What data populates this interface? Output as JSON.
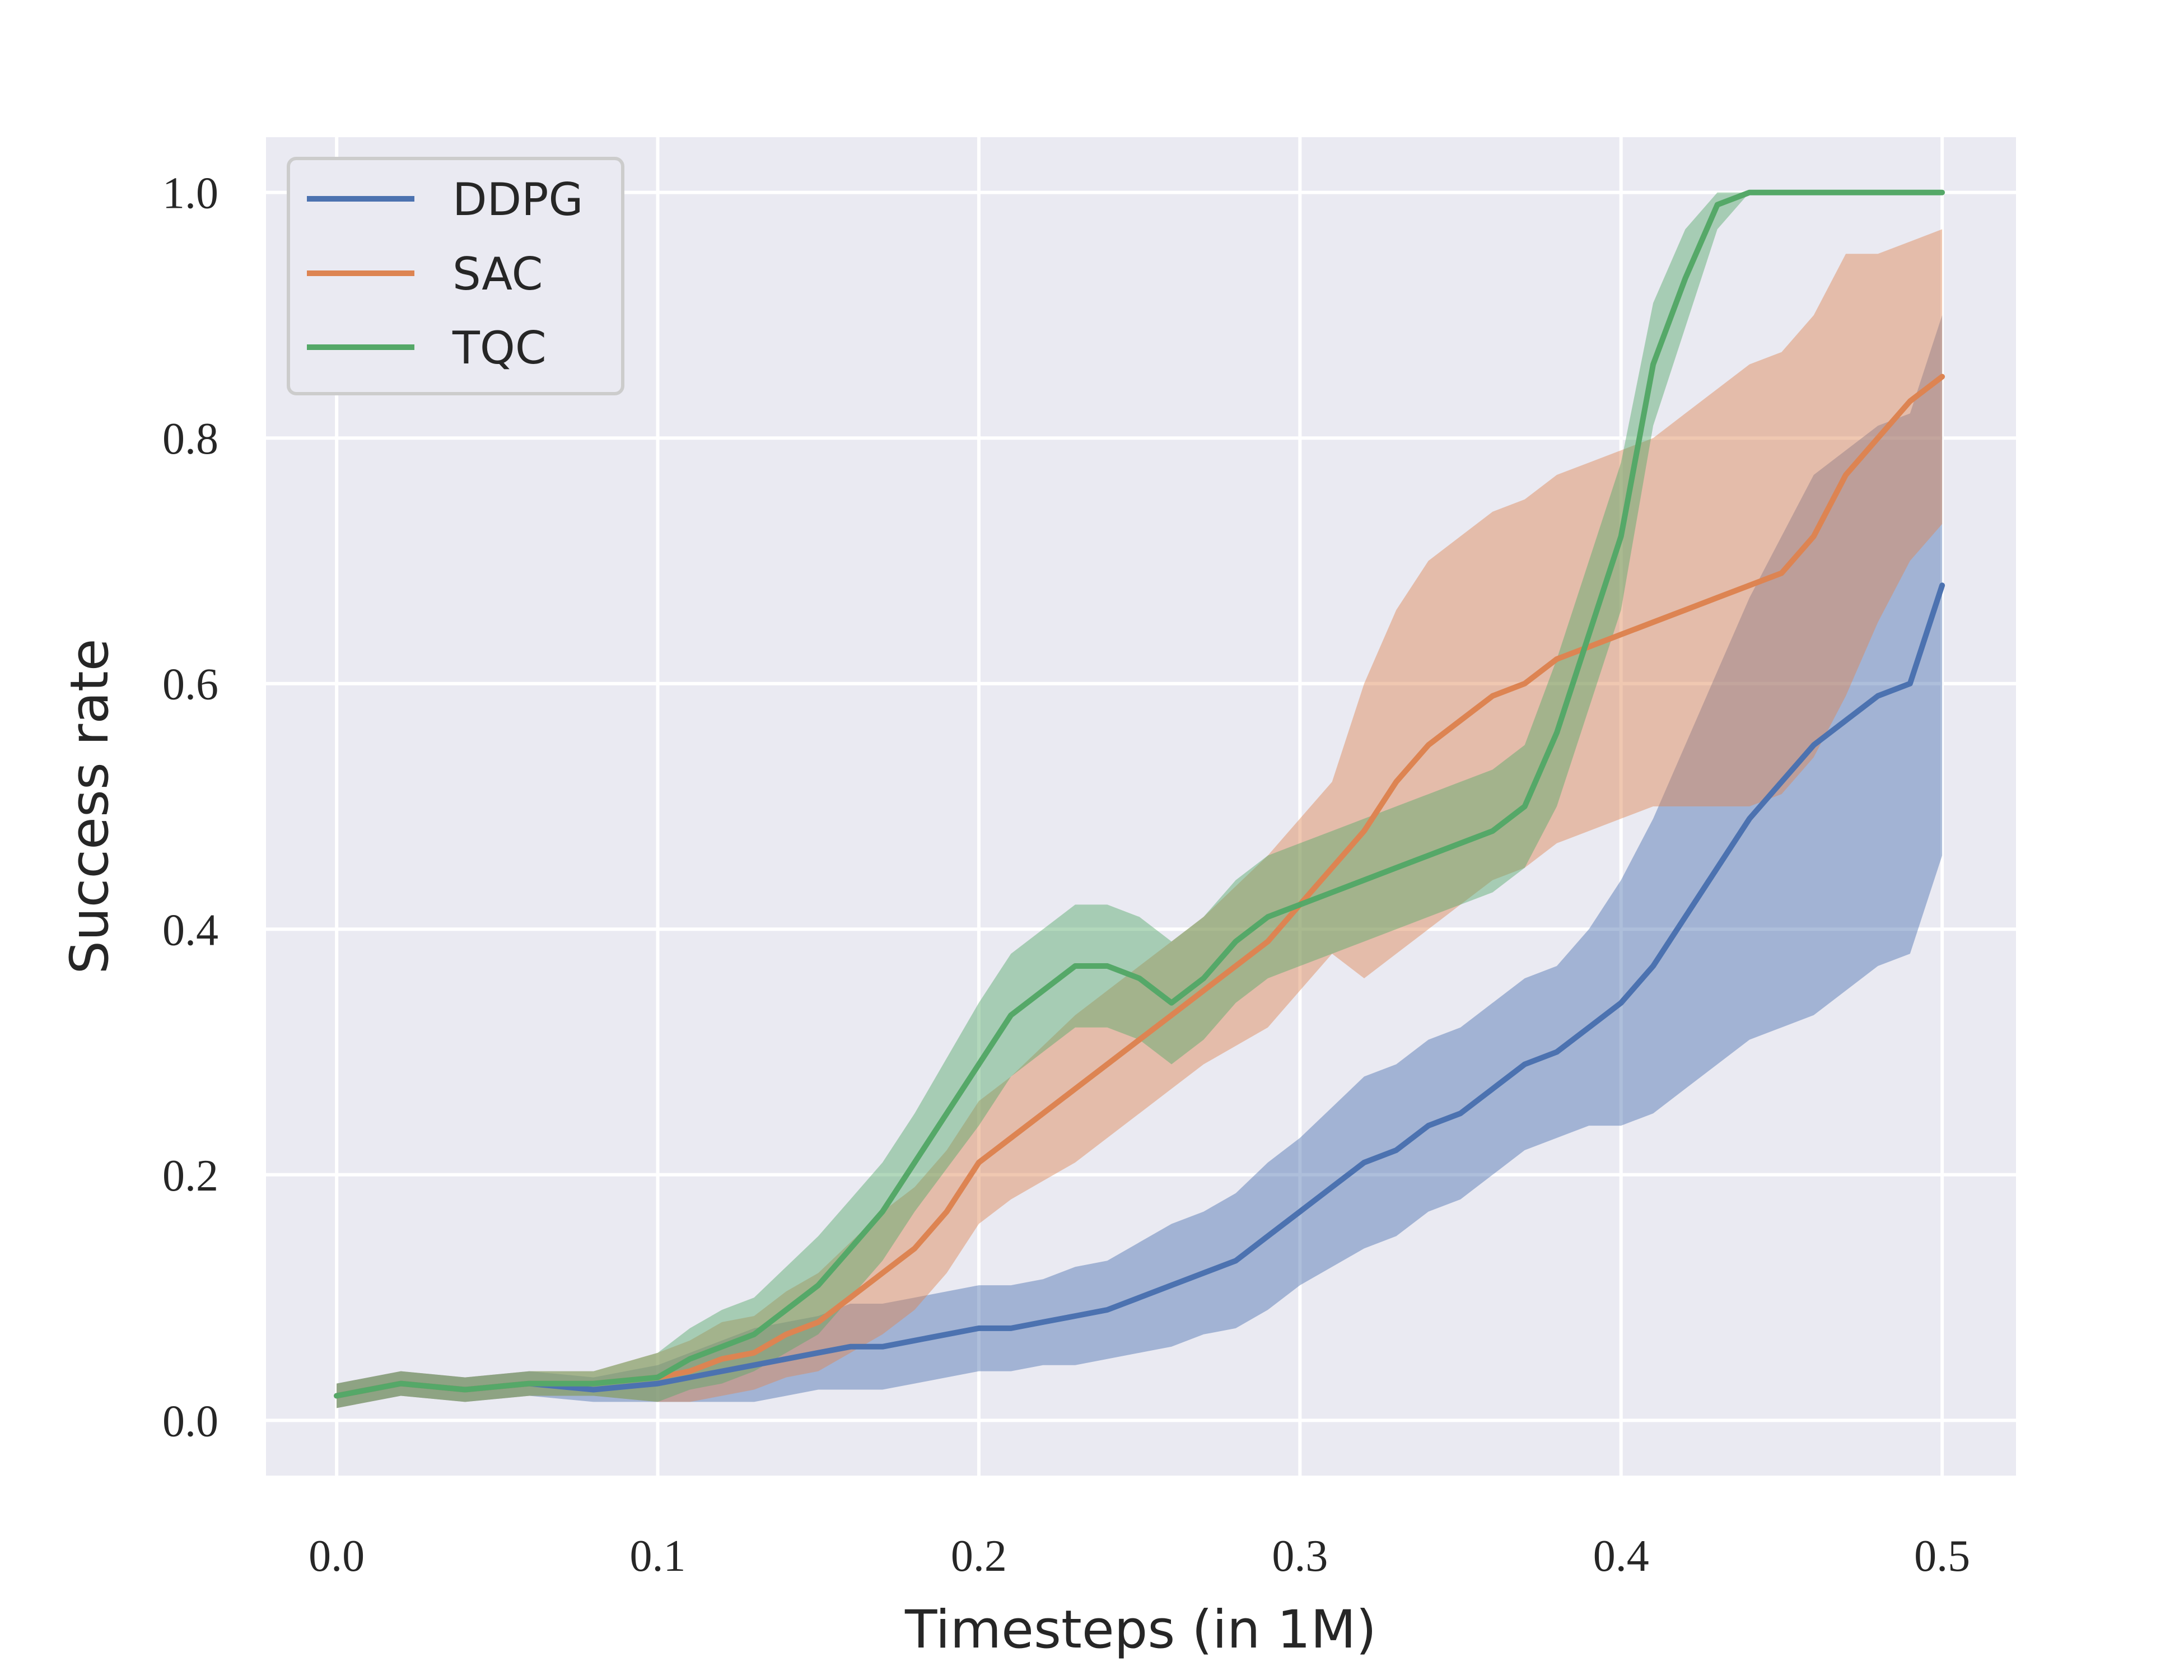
{
  "chart_data": {
    "type": "line",
    "title": "",
    "xlabel": "Timesteps (in 1M)",
    "ylabel": "Success rate",
    "xlim": [
      -0.022,
      0.523
    ],
    "ylim": [
      -0.045,
      1.045
    ],
    "x_ticks": [
      0.0,
      0.1,
      0.2,
      0.3,
      0.4,
      0.5
    ],
    "x_tick_labels": [
      "0.0",
      "0.1",
      "0.2",
      "0.3",
      "0.4",
      "0.5"
    ],
    "y_ticks": [
      0.0,
      0.2,
      0.4,
      0.6,
      0.8,
      1.0
    ],
    "y_tick_labels": [
      "0.0",
      "0.2",
      "0.4",
      "0.6",
      "0.8",
      "1.0"
    ],
    "grid": true,
    "legend": "top-left",
    "shaded_band": "mean ± spread across runs",
    "series": [
      {
        "name": "DDPG",
        "color": "#4c72b0",
        "x": [
          0.0,
          0.02,
          0.04,
          0.06,
          0.08,
          0.1,
          0.11,
          0.12,
          0.13,
          0.14,
          0.15,
          0.16,
          0.17,
          0.18,
          0.19,
          0.2,
          0.21,
          0.22,
          0.23,
          0.24,
          0.25,
          0.26,
          0.27,
          0.28,
          0.29,
          0.3,
          0.31,
          0.32,
          0.33,
          0.34,
          0.35,
          0.36,
          0.37,
          0.38,
          0.39,
          0.4,
          0.41,
          0.42,
          0.43,
          0.44,
          0.45,
          0.46,
          0.47,
          0.48,
          0.49,
          0.5
        ],
        "y": [
          0.02,
          0.03,
          0.025,
          0.03,
          0.025,
          0.03,
          0.035,
          0.04,
          0.045,
          0.05,
          0.055,
          0.06,
          0.06,
          0.065,
          0.07,
          0.075,
          0.075,
          0.08,
          0.085,
          0.09,
          0.1,
          0.11,
          0.12,
          0.13,
          0.15,
          0.17,
          0.19,
          0.21,
          0.22,
          0.24,
          0.25,
          0.27,
          0.29,
          0.3,
          0.32,
          0.34,
          0.37,
          0.41,
          0.45,
          0.49,
          0.52,
          0.55,
          0.57,
          0.59,
          0.6,
          0.68
        ],
        "spread": [
          0.01,
          0.01,
          0.01,
          0.01,
          0.01,
          0.015,
          0.02,
          0.025,
          0.03,
          0.03,
          0.03,
          0.035,
          0.035,
          0.035,
          0.035,
          0.035,
          0.035,
          0.035,
          0.04,
          0.04,
          0.045,
          0.05,
          0.05,
          0.055,
          0.06,
          0.06,
          0.065,
          0.07,
          0.07,
          0.07,
          0.07,
          0.07,
          0.07,
          0.07,
          0.08,
          0.1,
          0.12,
          0.14,
          0.16,
          0.18,
          0.2,
          0.22,
          0.22,
          0.22,
          0.22,
          0.22
        ]
      },
      {
        "name": "SAC",
        "color": "#dd8452",
        "x": [
          0.0,
          0.02,
          0.04,
          0.06,
          0.08,
          0.1,
          0.11,
          0.12,
          0.13,
          0.14,
          0.15,
          0.16,
          0.17,
          0.18,
          0.19,
          0.2,
          0.21,
          0.22,
          0.23,
          0.24,
          0.25,
          0.26,
          0.27,
          0.28,
          0.29,
          0.3,
          0.31,
          0.32,
          0.33,
          0.34,
          0.35,
          0.36,
          0.37,
          0.38,
          0.39,
          0.4,
          0.41,
          0.42,
          0.43,
          0.44,
          0.45,
          0.46,
          0.47,
          0.48,
          0.49,
          0.5
        ],
        "y": [
          0.02,
          0.03,
          0.025,
          0.03,
          0.03,
          0.035,
          0.04,
          0.05,
          0.055,
          0.07,
          0.08,
          0.1,
          0.12,
          0.14,
          0.17,
          0.21,
          0.23,
          0.25,
          0.27,
          0.29,
          0.31,
          0.33,
          0.35,
          0.37,
          0.39,
          0.42,
          0.45,
          0.48,
          0.52,
          0.55,
          0.57,
          0.59,
          0.6,
          0.62,
          0.63,
          0.64,
          0.65,
          0.66,
          0.67,
          0.68,
          0.69,
          0.72,
          0.77,
          0.8,
          0.83,
          0.85
        ],
        "spread": [
          0.01,
          0.01,
          0.01,
          0.01,
          0.01,
          0.02,
          0.025,
          0.03,
          0.03,
          0.035,
          0.04,
          0.045,
          0.05,
          0.05,
          0.05,
          0.05,
          0.05,
          0.055,
          0.06,
          0.06,
          0.06,
          0.06,
          0.06,
          0.065,
          0.07,
          0.07,
          0.07,
          0.12,
          0.14,
          0.15,
          0.15,
          0.15,
          0.15,
          0.15,
          0.15,
          0.15,
          0.15,
          0.16,
          0.17,
          0.18,
          0.18,
          0.18,
          0.18,
          0.15,
          0.13,
          0.12
        ]
      },
      {
        "name": "TQC",
        "color": "#55a868",
        "x": [
          0.0,
          0.02,
          0.04,
          0.06,
          0.08,
          0.1,
          0.11,
          0.12,
          0.13,
          0.14,
          0.15,
          0.16,
          0.17,
          0.18,
          0.19,
          0.2,
          0.21,
          0.22,
          0.23,
          0.24,
          0.25,
          0.26,
          0.27,
          0.28,
          0.29,
          0.3,
          0.31,
          0.32,
          0.33,
          0.34,
          0.35,
          0.36,
          0.37,
          0.38,
          0.39,
          0.4,
          0.41,
          0.42,
          0.43,
          0.44,
          0.45,
          0.46,
          0.47,
          0.48,
          0.49,
          0.5
        ],
        "y": [
          0.02,
          0.03,
          0.025,
          0.03,
          0.03,
          0.035,
          0.05,
          0.06,
          0.07,
          0.09,
          0.11,
          0.14,
          0.17,
          0.21,
          0.25,
          0.29,
          0.33,
          0.35,
          0.37,
          0.37,
          0.36,
          0.34,
          0.36,
          0.39,
          0.41,
          0.42,
          0.43,
          0.44,
          0.45,
          0.46,
          0.47,
          0.48,
          0.5,
          0.56,
          0.64,
          0.72,
          0.86,
          0.93,
          0.99,
          1.0,
          1.0,
          1.0,
          1.0,
          1.0,
          1.0,
          1.0
        ],
        "spread": [
          0.01,
          0.01,
          0.01,
          0.01,
          0.01,
          0.02,
          0.025,
          0.03,
          0.03,
          0.035,
          0.04,
          0.04,
          0.04,
          0.04,
          0.045,
          0.05,
          0.05,
          0.05,
          0.05,
          0.05,
          0.05,
          0.05,
          0.05,
          0.05,
          0.05,
          0.05,
          0.05,
          0.05,
          0.05,
          0.05,
          0.05,
          0.05,
          0.05,
          0.06,
          0.06,
          0.06,
          0.05,
          0.04,
          0.02,
          0.0,
          0.0,
          0.0,
          0.0,
          0.0,
          0.0,
          0.0
        ]
      }
    ]
  }
}
